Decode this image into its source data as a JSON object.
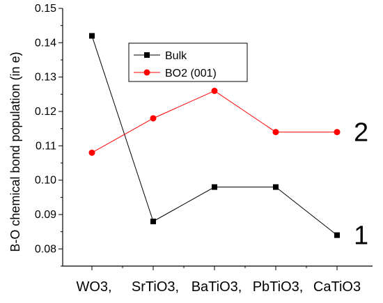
{
  "chart_data": {
    "type": "line",
    "title": "",
    "xlabel": "",
    "ylabel": "B-O chemical bond population (in e)",
    "categories": [
      "WO3,",
      "SrTiO3,",
      "BaTiO3,",
      "PbTiO3,",
      "CaTiO3"
    ],
    "ylim": [
      0.075,
      0.15
    ],
    "yticks": [
      0.08,
      0.09,
      0.1,
      0.11,
      0.12,
      0.13,
      0.14,
      0.15
    ],
    "ytick_labels": [
      "0.08",
      "0.09",
      "0.10",
      "0.11",
      "0.12",
      "0.13",
      "0.14",
      "0.15"
    ],
    "grid": false,
    "legend_position": "top-center",
    "series": [
      {
        "name": "Bulk",
        "color": "#000000",
        "marker": "square",
        "values": [
          0.142,
          0.088,
          0.098,
          0.098,
          0.084
        ],
        "end_label": "1"
      },
      {
        "name": "BO2 (001)",
        "color": "#ff0000",
        "marker": "circle",
        "values": [
          0.108,
          0.118,
          0.126,
          0.114,
          0.114
        ],
        "end_label": "2"
      }
    ]
  }
}
